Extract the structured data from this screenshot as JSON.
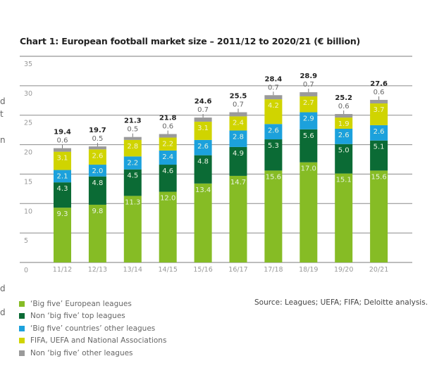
{
  "page_fragments": [
    "d",
    "t",
    "n",
    "d",
    "d"
  ],
  "chart_data": {
    "type": "bar",
    "stacked": true,
    "title": "Chart 1: European football market size – 2011/12 to 2020/21 (€ billion)",
    "xlabel": "",
    "ylabel": "",
    "ylim": [
      0,
      35
    ],
    "yticks": [
      0,
      5,
      10,
      15,
      20,
      25,
      30,
      35
    ],
    "grid": true,
    "legend_position": "bottom-left",
    "categories": [
      "11/12",
      "12/13",
      "13/14",
      "14/15",
      "15/16",
      "16/17",
      "17/18",
      "18/19",
      "19/20",
      "20/21"
    ],
    "series": [
      {
        "name": "‘Big five’ European leagues",
        "color": "#86bc25",
        "values": [
          9.3,
          9.8,
          11.3,
          12.0,
          13.4,
          14.7,
          15.6,
          17.0,
          15.1,
          15.6
        ]
      },
      {
        "name": "Non ‘big five’ top leagues",
        "color": "#0b6b35",
        "values": [
          4.3,
          4.8,
          4.5,
          4.6,
          4.8,
          4.9,
          5.3,
          5.6,
          5.0,
          5.1
        ]
      },
      {
        "name": "‘Big five’ countries’ other leagues",
        "color": "#1ca1dc",
        "values": [
          2.1,
          2.0,
          2.2,
          2.4,
          2.6,
          2.8,
          2.6,
          2.9,
          2.6,
          2.6
        ]
      },
      {
        "name": "FIFA, UEFA and National Associations",
        "color": "#d0d400",
        "values": [
          3.1,
          2.6,
          2.8,
          2.2,
          3.1,
          2.4,
          4.2,
          2.7,
          1.9,
          3.7
        ]
      },
      {
        "name": "Non ‘big five’ other leagues",
        "color": "#9a9a9a",
        "values": [
          0.6,
          0.5,
          0.5,
          0.6,
          0.7,
          0.7,
          0.7,
          0.7,
          0.6,
          0.6
        ]
      }
    ],
    "totals": [
      19.4,
      19.7,
      21.3,
      21.8,
      24.6,
      25.5,
      28.4,
      28.9,
      25.2,
      27.6
    ],
    "source": "Source: Leagues; UEFA; FIFA; Deloitte analysis."
  }
}
